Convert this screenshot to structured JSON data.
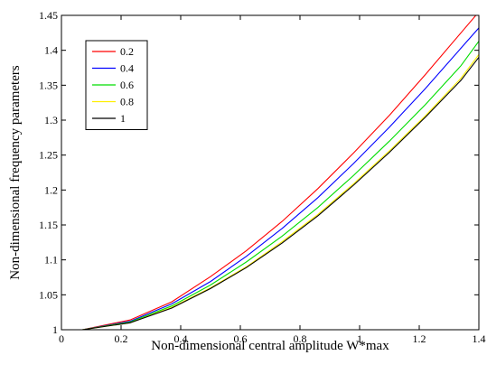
{
  "chart_data": {
    "type": "line",
    "title": "",
    "xlabel": "Non-dimensional central amplitude W*max",
    "ylabel": "Non-dimensional frequency parameters",
    "xlim": [
      0,
      1.4
    ],
    "ylim": [
      1,
      1.45
    ],
    "xticks": [
      0,
      0.2,
      0.4,
      0.6,
      0.8,
      1,
      1.2,
      1.4
    ],
    "xtick_labels": [
      "0",
      "0.2",
      "0.4",
      "0.6",
      "0.8",
      "1",
      "1.2",
      "1.4"
    ],
    "yticks": [
      1,
      1.05,
      1.1,
      1.15,
      1.2,
      1.25,
      1.3,
      1.35,
      1.4,
      1.45
    ],
    "ytick_labels": [
      "1",
      "1.05",
      "1.1",
      "1.15",
      "1.2",
      "1.25",
      "1.3",
      "1.35",
      "1.4",
      "1.45"
    ],
    "grid": false,
    "legend_position": "top-left",
    "x": [
      0.07,
      0.23,
      0.37,
      0.5,
      0.62,
      0.74,
      0.86,
      0.98,
      1.1,
      1.22,
      1.34,
      1.4
    ],
    "series": [
      {
        "name": "0.2",
        "color": "#ff0000",
        "values": [
          1.0,
          1.014,
          1.04,
          1.076,
          1.113,
          1.155,
          1.202,
          1.253,
          1.307,
          1.365,
          1.425,
          1.455
        ]
      },
      {
        "name": "0.4",
        "color": "#0000ff",
        "values": [
          1.0,
          1.012,
          1.037,
          1.069,
          1.105,
          1.145,
          1.189,
          1.238,
          1.29,
          1.345,
          1.403,
          1.432
        ]
      },
      {
        "name": "0.6",
        "color": "#00dd00",
        "values": [
          1.0,
          1.011,
          1.034,
          1.064,
          1.097,
          1.134,
          1.175,
          1.221,
          1.27,
          1.322,
          1.378,
          1.413
        ]
      },
      {
        "name": "0.8",
        "color": "#ffee00",
        "values": [
          1.0,
          1.01,
          1.032,
          1.06,
          1.09,
          1.126,
          1.165,
          1.209,
          1.256,
          1.306,
          1.36,
          1.394
        ]
      },
      {
        "name": "1",
        "color": "#000000",
        "values": [
          1.0,
          1.01,
          1.031,
          1.059,
          1.089,
          1.124,
          1.163,
          1.207,
          1.254,
          1.304,
          1.357,
          1.39
        ]
      }
    ]
  }
}
